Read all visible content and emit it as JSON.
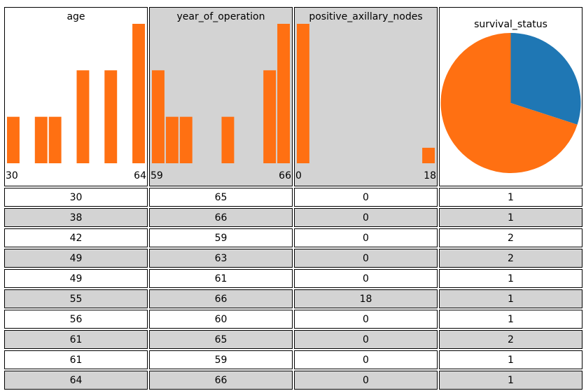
{
  "columns": [
    {
      "name": "age",
      "type": "histogram",
      "xlim": [
        30,
        64
      ],
      "bins": [
        30,
        33.4,
        36.8,
        40.2,
        43.6,
        47,
        50.4,
        53.8,
        57.2,
        60.6,
        64
      ],
      "counts": [
        1,
        0,
        1,
        1,
        0,
        2,
        0,
        2,
        0,
        3
      ],
      "color": "#ff7012",
      "background": "#ffffff"
    },
    {
      "name": "year_of_operation",
      "type": "histogram",
      "xlim": [
        59,
        66
      ],
      "bins": [
        59,
        59.7,
        60.4,
        61.1,
        61.8,
        62.5,
        63.2,
        63.9,
        64.6,
        65.3,
        66
      ],
      "counts": [
        2,
        1,
        1,
        0,
        0,
        1,
        0,
        0,
        2,
        3
      ],
      "color": "#ff7012",
      "background": "#d3d3d3"
    },
    {
      "name": "positive_axillary_nodes",
      "type": "histogram",
      "xlim": [
        0,
        18
      ],
      "bins": [
        0,
        1.8,
        3.6,
        5.4,
        7.2,
        9,
        10.8,
        12.6,
        14.4,
        16.2,
        18
      ],
      "counts": [
        9,
        0,
        0,
        0,
        0,
        0,
        0,
        0,
        0,
        1
      ],
      "color": "#ff7012",
      "background": "#d3d3d3"
    },
    {
      "name": "survival_status",
      "type": "pie",
      "values": [
        7,
        3
      ],
      "colors": [
        "#ff7012",
        "#1f77b4"
      ],
      "background": "#ffffff"
    }
  ],
  "table": {
    "rows": [
      [
        30,
        65,
        0,
        1
      ],
      [
        38,
        66,
        0,
        1
      ],
      [
        42,
        59,
        0,
        2
      ],
      [
        49,
        63,
        0,
        2
      ],
      [
        49,
        61,
        0,
        1
      ],
      [
        55,
        66,
        18,
        1
      ],
      [
        56,
        60,
        0,
        1
      ],
      [
        61,
        65,
        0,
        2
      ],
      [
        61,
        59,
        0,
        1
      ],
      [
        64,
        66,
        0,
        1
      ]
    ]
  }
}
